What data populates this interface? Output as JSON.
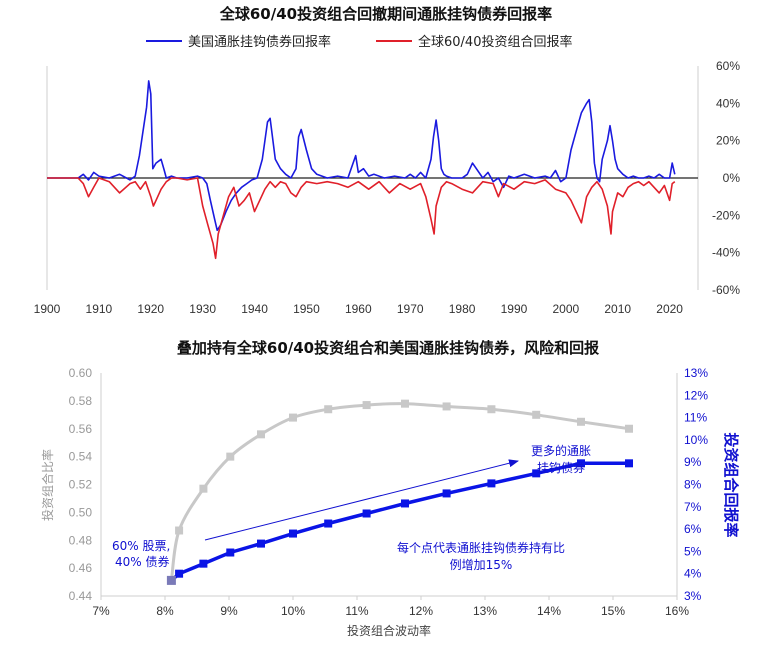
{
  "chart_data": [
    {
      "type": "line",
      "title": "全球60/40投资组合回撤期间通胀挂钩债券回报率",
      "x_ticks": [
        "1900",
        "1910",
        "1920",
        "1930",
        "1940",
        "1950",
        "1960",
        "1970",
        "1980",
        "1990",
        "2000",
        "2010",
        "2020"
      ],
      "xlim": [
        1900,
        2022
      ],
      "y_ticks": [
        "60%",
        "40%",
        "20%",
        "0%",
        "-20%",
        "-40%",
        "-60%"
      ],
      "ylim": [
        -60,
        60
      ],
      "legend": [
        "美国通胀挂钩债券回报率",
        "全球60/40投资组合回报率"
      ],
      "colors": {
        "tips": "#1a1adf",
        "portfolio": "#e0202a"
      },
      "series": [
        {
          "name": "美国通胀挂钩债券回报率",
          "x": [
            1900,
            1906,
            1907,
            1908,
            1909,
            1910,
            1912,
            1914,
            1916,
            1917,
            1917.8,
            1918.5,
            1919.2,
            1919.6,
            1920,
            1920.4,
            1921,
            1922,
            1922.6,
            1923,
            1924,
            1925,
            1927,
            1929,
            1930,
            1930.8,
            1931.5,
            1932.3,
            1932.8,
            1933.5,
            1934.5,
            1935.5,
            1936.5,
            1937.5,
            1938.5,
            1939.5,
            1940.5,
            1941.5,
            1942,
            1942.5,
            1943,
            1944,
            1945,
            1946,
            1947,
            1948,
            1948.5,
            1949,
            1950,
            1951,
            1952,
            1954,
            1956,
            1958,
            1959.5,
            1960,
            1961,
            1962,
            1963,
            1965,
            1967,
            1969,
            1970,
            1971,
            1972,
            1973,
            1974,
            1974.5,
            1975,
            1975.5,
            1976,
            1976.5,
            1977,
            1978,
            1980,
            1981,
            1982,
            1984,
            1985,
            1986,
            1987,
            1988,
            1989,
            1990,
            1992,
            1994,
            1996,
            1997,
            1998,
            1999,
            2000,
            2001,
            2002,
            2003,
            2004,
            2004.5,
            2005,
            2005.5,
            2006,
            2006.5,
            2007,
            2008,
            2008.5,
            2009,
            2009.5,
            2010,
            2011,
            2012,
            2013,
            2014,
            2015,
            2016,
            2017,
            2018,
            2019,
            2020,
            2020.5,
            2021
          ],
          "values": [
            0,
            0,
            2,
            -1,
            3,
            1,
            0,
            2,
            -1,
            1,
            12,
            25,
            38,
            52,
            45,
            5,
            8,
            10,
            4,
            0,
            1,
            0,
            0,
            1,
            0,
            -3,
            -12,
            -22,
            -28,
            -25,
            -18,
            -12,
            -8,
            -5,
            -3,
            -1,
            0,
            10,
            20,
            30,
            32,
            10,
            5,
            2,
            0,
            5,
            22,
            26,
            15,
            5,
            2,
            0,
            1,
            0,
            12,
            3,
            5,
            1,
            2,
            0,
            1,
            0,
            2,
            0,
            3,
            0,
            10,
            22,
            31,
            20,
            5,
            2,
            1,
            0,
            0,
            2,
            8,
            0,
            3,
            -2,
            0,
            -5,
            1,
            0,
            2,
            0,
            1,
            0,
            4,
            -2,
            0,
            15,
            25,
            35,
            40,
            42,
            30,
            8,
            0,
            -2,
            10,
            20,
            28,
            20,
            10,
            5,
            2,
            0,
            1,
            0,
            0,
            1,
            0,
            2,
            0,
            0,
            8,
            2
          ]
        },
        {
          "name": "全球60/40投资组合回报率",
          "x": [
            1900,
            1906,
            1907,
            1908,
            1909,
            1910,
            1912,
            1914,
            1916,
            1917,
            1918,
            1919,
            1920,
            1920.5,
            1921,
            1922,
            1923,
            1924,
            1925,
            1927,
            1929,
            1930,
            1931,
            1932,
            1932.5,
            1933,
            1934,
            1935,
            1936,
            1937,
            1938,
            1939,
            1940,
            1941,
            1942,
            1943,
            1944,
            1945,
            1946,
            1947,
            1948,
            1949,
            1950,
            1952,
            1954,
            1956,
            1958,
            1960,
            1962,
            1964,
            1966,
            1968,
            1970,
            1972,
            1973,
            1974,
            1974.6,
            1975,
            1976,
            1977,
            1978,
            1980,
            1982,
            1984,
            1986,
            1987,
            1988,
            1990,
            1992,
            1994,
            1996,
            1998,
            2000,
            2001,
            2002,
            2003,
            2004,
            2005,
            2006,
            2007,
            2008,
            2008.7,
            2009,
            2010,
            2011,
            2012,
            2013,
            2014,
            2015,
            2016,
            2018,
            2019,
            2020,
            2020.5,
            2021
          ],
          "values": [
            0,
            0,
            -3,
            -10,
            -5,
            0,
            -2,
            -8,
            -3,
            -2,
            -6,
            -2,
            -10,
            -15,
            -12,
            -6,
            -2,
            0,
            0,
            -1,
            0,
            -15,
            -25,
            -35,
            -43,
            -30,
            -20,
            -10,
            -5,
            -15,
            -12,
            -8,
            -18,
            -12,
            -6,
            -2,
            -5,
            -2,
            -3,
            -8,
            -10,
            -5,
            -2,
            -3,
            -2,
            -3,
            -5,
            -2,
            -6,
            -2,
            -8,
            -3,
            -6,
            -3,
            -10,
            -22,
            -30,
            -15,
            -5,
            -2,
            -3,
            -6,
            -8,
            -2,
            -3,
            -10,
            -3,
            -6,
            -2,
            -3,
            -1,
            -6,
            -8,
            -12,
            -18,
            -24,
            -10,
            -5,
            -2,
            -6,
            -15,
            -30,
            -18,
            -8,
            -10,
            -5,
            -3,
            -2,
            -4,
            -2,
            -8,
            -4,
            -12,
            -3,
            -2
          ]
        }
      ]
    },
    {
      "type": "line",
      "title": "叠加持有全球60/40投资组合和美国通胀挂钩债券，风险和回报",
      "xlabel": "投资组合波动率",
      "ylabel_left": "投资组合比率",
      "ylabel_right": "投资组合回报率",
      "x_ticks": [
        "7%",
        "8%",
        "9%",
        "10%",
        "11%",
        "12%",
        "13%",
        "14%",
        "15%",
        "16%"
      ],
      "xlim": [
        7,
        16
      ],
      "y_left_ticks": [
        "0.60",
        "0.58",
        "0.56",
        "0.54",
        "0.52",
        "0.50",
        "0.48",
        "0.46",
        "0.44"
      ],
      "ylim_left": [
        0.44,
        0.6
      ],
      "y_right_ticks": [
        "13%",
        "12%",
        "11%",
        "10%",
        "9%",
        "8%",
        "7%",
        "6%",
        "5%",
        "4%",
        "3%"
      ],
      "ylim_right": [
        3,
        13
      ],
      "colors": {
        "ratio": "#c8c8c8",
        "return": "#0a14e6"
      },
      "series": [
        {
          "name": "投资组合比率",
          "axis": "left",
          "x": [
            8.1,
            8.22,
            8.6,
            9.02,
            9.5,
            10.0,
            10.55,
            11.15,
            11.75,
            12.4,
            13.1,
            13.8,
            14.5,
            15.25
          ],
          "values": [
            0.451,
            0.487,
            0.517,
            0.54,
            0.556,
            0.568,
            0.574,
            0.577,
            0.578,
            0.576,
            0.574,
            0.57,
            0.565,
            0.56
          ]
        },
        {
          "name": "投资组合回报率",
          "axis": "right",
          "x": [
            8.1,
            8.22,
            8.6,
            9.02,
            9.5,
            10.0,
            10.55,
            11.15,
            11.75,
            12.4,
            13.1,
            13.8,
            14.5,
            15.25
          ],
          "values": [
            3.7,
            4.0,
            4.45,
            4.95,
            5.35,
            5.8,
            6.25,
            6.7,
            7.15,
            7.6,
            8.05,
            8.5,
            8.95,
            8.95
          ]
        }
      ],
      "annotations": {
        "start": [
          "60% 股票,",
          "40% 债券"
        ],
        "arrow_text": [
          "更多的通胀",
          "挂钩债券"
        ],
        "note": [
          "每个点代表通胀挂钩债券持有比",
          "例增加15%"
        ]
      }
    }
  ]
}
